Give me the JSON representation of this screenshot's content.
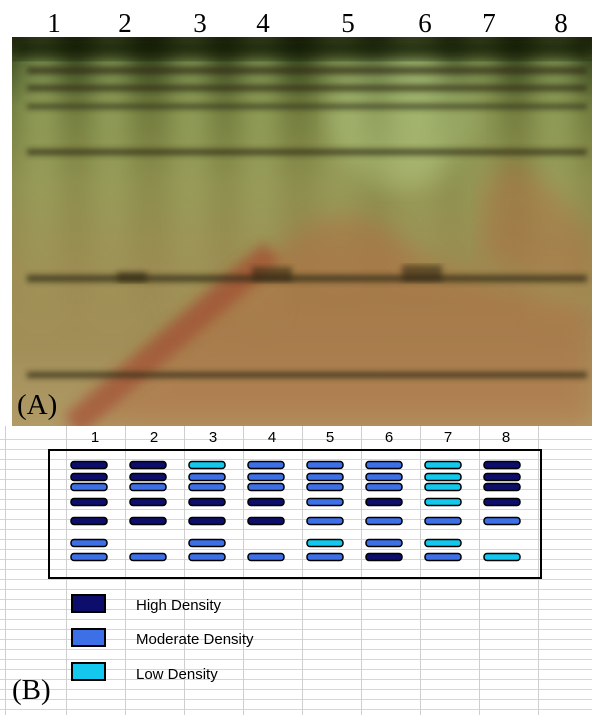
{
  "panel_a": {
    "label": "(A)",
    "lane_numbers": [
      "1",
      "2",
      "3",
      "4",
      "5",
      "6",
      "7",
      "8"
    ]
  },
  "panel_b": {
    "label": "(B)",
    "column_numbers": [
      "1",
      "2",
      "3",
      "4",
      "5",
      "6",
      "7",
      "8"
    ],
    "density_colors": {
      "high": "#0d0d6b",
      "moderate": "#3d6fe6",
      "low": "#13c8ec"
    },
    "lanes": [
      [
        "high",
        "high",
        "moderate",
        "high",
        "high",
        "moderate",
        "moderate"
      ],
      [
        "high",
        "high",
        "moderate",
        "high",
        "high",
        null,
        "moderate"
      ],
      [
        "low",
        "moderate",
        "moderate",
        "high",
        "high",
        "moderate",
        "moderate"
      ],
      [
        "moderate",
        "moderate",
        "moderate",
        "high",
        "high",
        null,
        "moderate"
      ],
      [
        "moderate",
        "moderate",
        "moderate",
        "moderate",
        "moderate",
        "low",
        "moderate"
      ],
      [
        "moderate",
        "moderate",
        "moderate",
        "high",
        "moderate",
        "moderate",
        "high"
      ],
      [
        "low",
        "low",
        "low",
        "low",
        "moderate",
        "low",
        "moderate"
      ],
      [
        "high",
        "high",
        "high",
        "high",
        "moderate",
        null,
        "low"
      ]
    ],
    "legend": [
      {
        "key": "high",
        "label": "High Density"
      },
      {
        "key": "moderate",
        "label": "Moderate Density"
      },
      {
        "key": "low",
        "label": "Low Density"
      }
    ]
  }
}
